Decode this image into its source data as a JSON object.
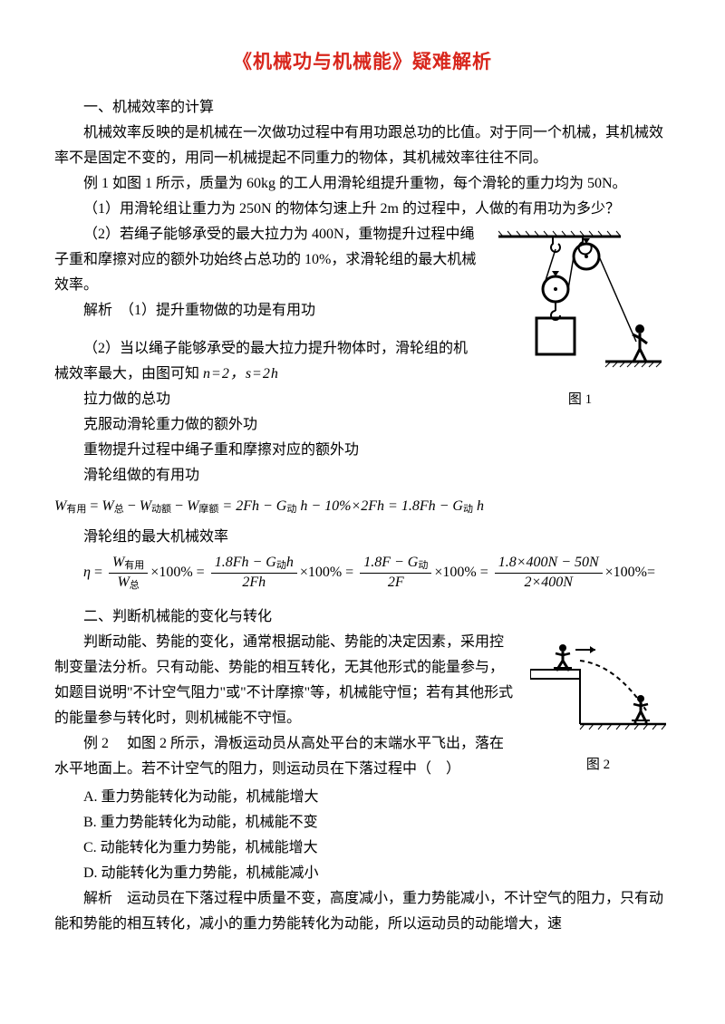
{
  "title": "《机械功与机械能》疑难解析",
  "s1_head": "一、机械效率的计算",
  "s1_p1": "机械效率反映的是机械在一次做功过程中有用功跟总功的比值。对于同一个机械，其机械效率不是固定不变的，用同一机械提起不同重力的物体，其机械效率往往不同。",
  "s1_ex": "例 1  如图 1 所示，质量为 60kg 的工人用滑轮组提升重物，每个滑轮的重力均为 50N。",
  "s1_q1": "（1）用滑轮组让重力为 250N 的物体匀速上升 2m 的过程中，人做的有用功为多少？",
  "s1_q2": "（2）若绳子能够承受的最大拉力为 400N，重物提升过程中绳子重和摩擦对应的额外功始终占总功的 10%，求滑轮组的最大机械效率。",
  "s1_a1": "解析　（1）提升重物做的功是有用功",
  "s1_a2a": "（2）当以绳子能够承受的最大拉力提升物体时，滑轮组的机械效率最大，由图可知 ",
  "s1_a2b": "n=2，s=2h",
  "s1_l1": "拉力做的总功",
  "s1_l2": "克服动滑轮重力做的额外功",
  "s1_l3": "重物提升过程中绳子重和摩擦对应的额外功",
  "s1_l4": "滑轮组做的有用功",
  "fig1_label": "图 1",
  "eq1": {
    "lhs": "W",
    "lhs_sub": "有用",
    "parts": [
      " =",
      "W",
      "总",
      "−",
      "W",
      "动额",
      "−",
      " W",
      "摩额",
      " = 2Fh − G",
      "动",
      "h − 10%×2Fh = 1.8Fh − G",
      "动",
      "h"
    ]
  },
  "s1_l5": "滑轮组的最大机械效率",
  "eta": {
    "terms": [
      {
        "num": "W<span class='sub'>有用</span>",
        "den": "W<span class='sub'>总</span>"
      },
      {
        "num": "1.8Fh − G<span class='sub'>动</span>h",
        "den": "2Fh"
      },
      {
        "num": "1.8F − G<span class='sub'>动</span>",
        "den": "2F"
      },
      {
        "num": "1.8×400N − 50N",
        "den": "2×400N"
      }
    ]
  },
  "s2_head": "二、判断机械能的变化与转化",
  "s2_p1a": "判断动能、势能的变化，通常根据动能、势能的决定因素，采用控制变量法分析。只有动能、势能的相互转化，无其他形式的能量参与，如题目说明\"不计空气阻力\"或\"不计摩擦\"等，机械能守恒；若有其他形式的能量参与转化时，则机械能不守恒。",
  "s2_ex": "例 2　 如图 2 所示，滑板运动员从高处平台的末端水平飞出，落在水平地面上。若不计空气的阻力，则运动员在下落过程中（　）",
  "fig2_label": "图 2",
  "optA": "A. 重力势能转化为动能，机械能增大",
  "optB": "B. 重力势能转化为动能，机械能不变",
  "optC": "C. 动能转化为重力势能，机械能增大",
  "optD": "D. 动能转化为重力势能，机械能减小",
  "s2_ans": "解析　运动员在下落过程中质量不变，高度减小，重力势能减小，不计空气的阻力，只有动能和势能的相互转化，减小的重力势能转化为动能，所以运动员的动能增大，速"
}
